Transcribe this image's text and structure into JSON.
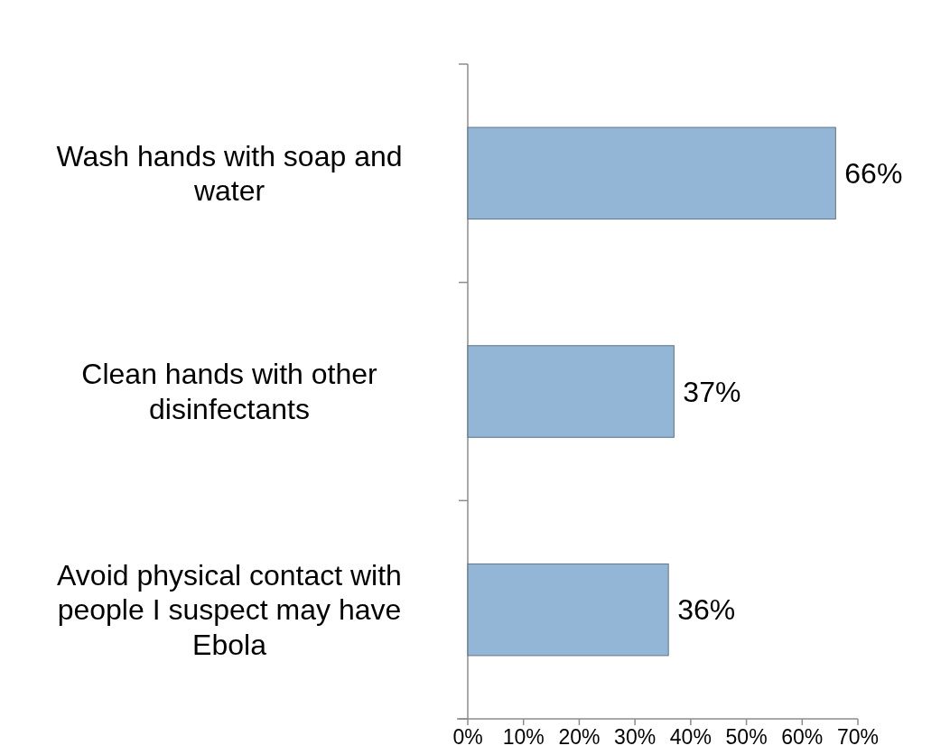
{
  "chart_data": {
    "type": "bar",
    "orientation": "horizontal",
    "categories": [
      "Wash hands with soap and water",
      "Clean hands with other disinfectants",
      "Avoid physical contact with people I suspect may have Ebola"
    ],
    "values": [
      66,
      37,
      36
    ],
    "color": "#93b6d6",
    "value_labels": [
      "66%",
      "37%",
      "36%"
    ],
    "xlim": [
      0,
      70
    ],
    "xticks": [
      {
        "value": 0,
        "label": "0%"
      },
      {
        "value": 10,
        "label": "10%"
      },
      {
        "value": 20,
        "label": "20%"
      },
      {
        "value": 30,
        "label": "30%"
      },
      {
        "value": 40,
        "label": "40%"
      },
      {
        "value": 50,
        "label": "50%"
      },
      {
        "value": 60,
        "label": "60%"
      },
      {
        "value": 70,
        "label": "70%"
      }
    ]
  }
}
